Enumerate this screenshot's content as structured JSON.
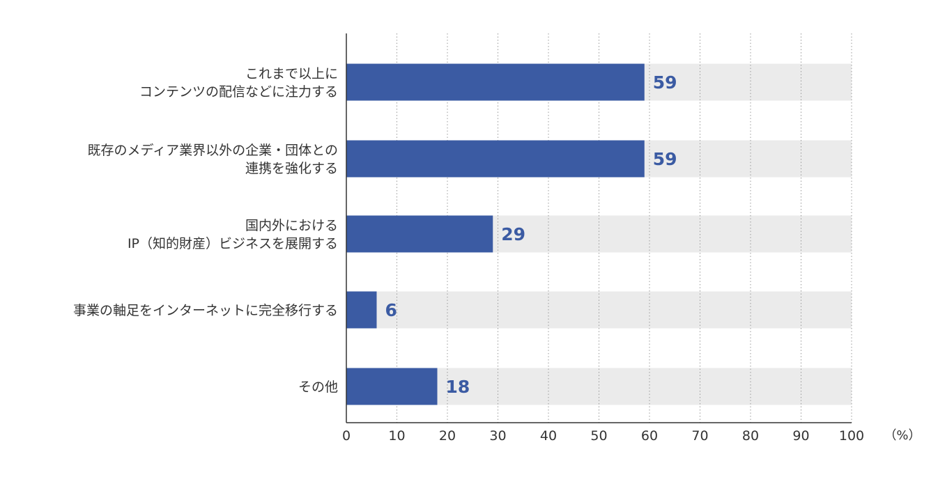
{
  "chart_data": {
    "type": "bar",
    "orientation": "horizontal",
    "categories": [
      [
        "これまで以上に",
        "コンテンツの配信などに注力する"
      ],
      [
        "既存のメディア業界以外の企業・団体との",
        "連携を強化する"
      ],
      [
        "国内外における",
        "IP（知的財産）ビジネスを展開する"
      ],
      [
        "事業の軸足をインターネットに完全移行する"
      ],
      [
        "その他"
      ]
    ],
    "values": [
      59,
      59,
      29,
      6,
      18
    ],
    "value_labels": [
      "59",
      "59",
      "29",
      "6",
      "18"
    ],
    "xlim": [
      0,
      100
    ],
    "x_ticks": [
      0,
      10,
      20,
      30,
      40,
      50,
      60,
      70,
      80,
      90,
      100
    ],
    "x_tick_labels": [
      "0",
      "10",
      "20",
      "30",
      "40",
      "50",
      "60",
      "70",
      "80",
      "90",
      "100"
    ],
    "unit": "（%）",
    "grid": "vertical dotted",
    "colors": {
      "bar": "#3b5ba3",
      "track": "#ebebeb",
      "value_text": "#3b5ba3",
      "axis": "#333333",
      "grid": "#9a9a9a",
      "text": "#333333"
    }
  }
}
